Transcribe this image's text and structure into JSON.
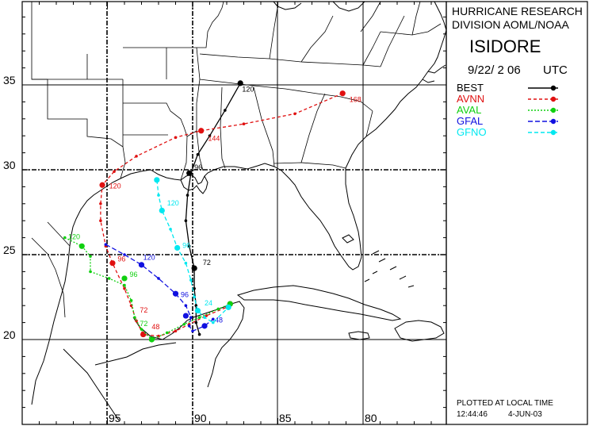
{
  "header": {
    "line1": "HURRICANE RESEARCH",
    "line2": "DIVISION AOML/NOAA",
    "storm": "ISIDORE",
    "date": "9/22/ 2 06",
    "utc": "UTC"
  },
  "legend": [
    {
      "name": "BEST",
      "color": "#000000"
    },
    {
      "name": "AVNN",
      "color": "#e01010"
    },
    {
      "name": "AVAL",
      "color": "#10d010"
    },
    {
      "name": "GFAL",
      "color": "#1010e0"
    },
    {
      "name": "GFNO",
      "color": "#00e8f0"
    }
  ],
  "footer": {
    "plotted": "PLOTTED AT LOCAL TIME",
    "time": "12:44:46",
    "date": "4-JUN-03"
  },
  "axes": {
    "lat_labels": [
      "35",
      "30",
      "25",
      "20"
    ],
    "lon_labels": [
      "95",
      "90",
      "85",
      "80"
    ]
  },
  "tracks": {
    "BEST": {
      "points": [
        [
          -87.2,
          35.1
        ],
        [
          -88.1,
          33.5
        ],
        [
          -89.0,
          32.0
        ],
        [
          -89.7,
          30.9
        ],
        [
          -90.1,
          29.8
        ],
        [
          -90.3,
          28.5
        ],
        [
          -90.4,
          27.0
        ],
        [
          -90.2,
          25.5
        ],
        [
          -89.9,
          24.2
        ],
        [
          -89.9,
          23.0
        ],
        [
          -89.8,
          22.0
        ],
        [
          -89.8,
          21.0
        ],
        [
          -89.6,
          20.3
        ]
      ],
      "markers": [
        [
          -87.2,
          35.1
        ],
        [
          -89.9,
          24.2
        ],
        [
          -90.2,
          29.8
        ]
      ],
      "labels": [
        {
          "text": "120",
          "at": [
            -87.1,
            34.6
          ]
        },
        {
          "text": "72",
          "at": [
            -89.4,
            24.4
          ]
        },
        {
          "text": "96",
          "at": [
            -89.9,
            30.0
          ]
        }
      ]
    },
    "AVNN": {
      "points": [
        [
          -81.2,
          34.5
        ],
        [
          -84.0,
          33.3
        ],
        [
          -87.0,
          32.7
        ],
        [
          -89.5,
          32.3
        ],
        [
          -91.0,
          31.9
        ],
        [
          -93.3,
          30.8
        ],
        [
          -94.6,
          29.9
        ],
        [
          -95.3,
          29.1
        ],
        [
          -95.4,
          28.0
        ],
        [
          -95.4,
          27.0
        ],
        [
          -95.1,
          25.5
        ],
        [
          -94.7,
          24.5
        ],
        [
          -94.0,
          23.0
        ],
        [
          -93.6,
          22.0
        ],
        [
          -93.3,
          21.1
        ],
        [
          -92.9,
          20.3
        ],
        [
          -92.0,
          20.2
        ],
        [
          -91.0,
          20.5
        ],
        [
          -90.2,
          20.9
        ],
        [
          -89.2,
          21.4
        ],
        [
          -88.0,
          21.9
        ],
        [
          -87.8,
          22.1
        ]
      ],
      "markers": [
        [
          -81.2,
          34.5
        ],
        [
          -89.5,
          32.3
        ],
        [
          -95.3,
          29.1
        ],
        [
          -94.7,
          24.5
        ],
        [
          -92.9,
          20.3
        ],
        [
          -87.8,
          22.1
        ]
      ],
      "labels": [
        {
          "text": "168",
          "at": [
            -80.8,
            34.0
          ]
        },
        {
          "text": "144",
          "at": [
            -89.1,
            31.7
          ]
        },
        {
          "text": "120",
          "at": [
            -94.9,
            28.9
          ]
        },
        {
          "text": "96",
          "at": [
            -94.4,
            24.6
          ]
        },
        {
          "text": "72",
          "at": [
            -93.1,
            21.6
          ]
        },
        {
          "text": "48",
          "at": [
            -92.4,
            20.6
          ]
        }
      ]
    },
    "AVAL": {
      "points": [
        [
          -97.5,
          26.0
        ],
        [
          -96.5,
          25.5
        ],
        [
          -96.0,
          24.9
        ],
        [
          -96.0,
          24.0
        ],
        [
          -94.9,
          23.6
        ],
        [
          -94.0,
          23.2
        ],
        [
          -93.6,
          22.3
        ],
        [
          -93.4,
          21.3
        ],
        [
          -93.0,
          20.6
        ],
        [
          -92.4,
          20.0
        ],
        [
          -91.5,
          20.4
        ],
        [
          -90.5,
          20.9
        ],
        [
          -89.6,
          21.3
        ],
        [
          -88.5,
          21.8
        ],
        [
          -87.8,
          22.1
        ]
      ],
      "markers": [
        [
          -96.5,
          25.5
        ],
        [
          -94.0,
          23.6
        ],
        [
          -92.4,
          20.0
        ],
        [
          -87.8,
          22.1
        ]
      ],
      "labels": [
        {
          "text": "120",
          "at": [
            -97.3,
            25.9
          ]
        },
        {
          "text": "96",
          "at": [
            -93.7,
            23.7
          ]
        },
        {
          "text": "72",
          "at": [
            -93.1,
            20.8
          ]
        }
      ]
    },
    "GFAL": {
      "points": [
        [
          -95.1,
          25.6
        ],
        [
          -94.0,
          25.0
        ],
        [
          -93.0,
          24.4
        ],
        [
          -92.0,
          23.6
        ],
        [
          -91.0,
          22.7
        ],
        [
          -90.4,
          22.0
        ],
        [
          -90.1,
          21.3
        ],
        [
          -90.2,
          20.8
        ],
        [
          -90.0,
          20.5
        ],
        [
          -89.3,
          20.8
        ],
        [
          -88.8,
          21.2
        ]
      ],
      "markers": [
        [
          -93.0,
          24.4
        ],
        [
          -91.0,
          22.7
        ],
        [
          -90.4,
          21.4
        ],
        [
          -89.3,
          20.8
        ]
      ],
      "labels": [
        {
          "text": "120",
          "at": [
            -92.9,
            24.7
          ]
        },
        {
          "text": "96",
          "at": [
            -90.7,
            22.5
          ]
        },
        {
          "text": "48",
          "at": [
            -88.7,
            21.0
          ]
        }
      ]
    },
    "GFNO": {
      "points": [
        [
          -92.1,
          29.4
        ],
        [
          -92.0,
          28.5
        ],
        [
          -91.8,
          27.6
        ],
        [
          -91.3,
          26.5
        ],
        [
          -90.9,
          25.4
        ],
        [
          -90.4,
          24.5
        ],
        [
          -90.1,
          23.5
        ],
        [
          -89.9,
          22.5
        ],
        [
          -89.7,
          21.7
        ],
        [
          -89.3,
          21.3
        ],
        [
          -88.8,
          21.0
        ],
        [
          -87.9,
          21.9
        ]
      ],
      "markers": [
        [
          -92.1,
          29.4
        ],
        [
          -91.8,
          27.6
        ],
        [
          -90.9,
          25.4
        ],
        [
          -89.7,
          21.7
        ],
        [
          -87.9,
          21.9
        ]
      ],
      "labels": [
        {
          "text": "120",
          "at": [
            -91.5,
            27.9
          ]
        },
        {
          "text": "96",
          "at": [
            -90.6,
            25.4
          ]
        },
        {
          "text": "24",
          "at": [
            -89.3,
            22.0
          ]
        }
      ]
    }
  }
}
